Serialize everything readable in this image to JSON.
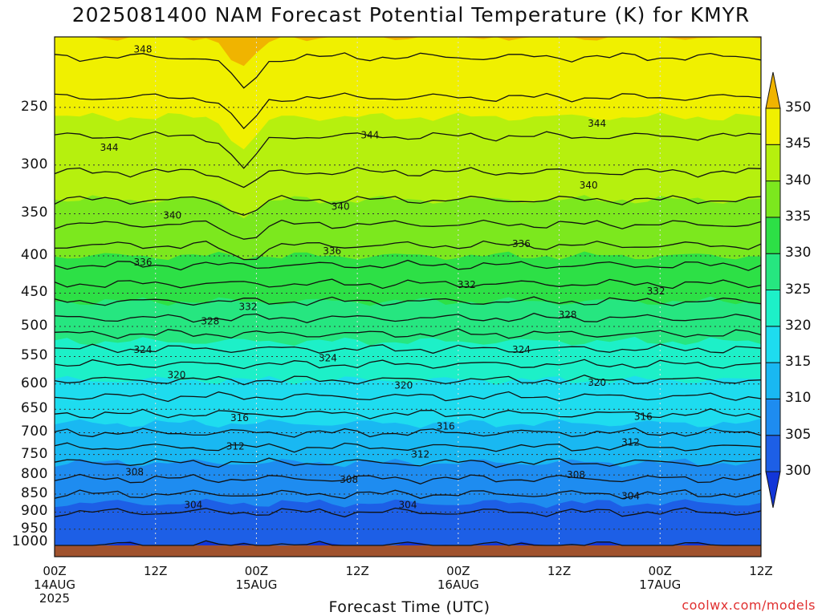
{
  "title": "2025081400 NAM Forecast Potential Temperature (K) for KMYR",
  "credit": "coolwx.com/models",
  "chart_data": {
    "type": "heatmap",
    "title": "2025081400 NAM Forecast Potential Temperature (K) for KMYR",
    "xlabel": "Forecast Time (UTC)",
    "ylabel": "",
    "y_scale": "log",
    "ylim": [
      1000,
      200
    ],
    "y_ticks": [
      250,
      300,
      350,
      400,
      450,
      500,
      550,
      600,
      650,
      700,
      750,
      800,
      850,
      900,
      950,
      1000
    ],
    "x_ticks": [
      {
        "hour": 0,
        "lines": [
          "00Z",
          "14AUG",
          "2025"
        ]
      },
      {
        "hour": 12,
        "lines": [
          "12Z"
        ]
      },
      {
        "hour": 24,
        "lines": [
          "00Z",
          "15AUG"
        ]
      },
      {
        "hour": 36,
        "lines": [
          "12Z"
        ]
      },
      {
        "hour": 48,
        "lines": [
          "00Z",
          "16AUG"
        ]
      },
      {
        "hour": 60,
        "lines": [
          "12Z"
        ]
      },
      {
        "hour": 72,
        "lines": [
          "00Z",
          "17AUG"
        ]
      },
      {
        "hour": 84,
        "lines": [
          "12Z"
        ]
      }
    ],
    "xlim_hours": [
      0,
      84
    ],
    "grid": true,
    "colorbar": {
      "levels": [
        300,
        305,
        310,
        315,
        320,
        325,
        330,
        335,
        340,
        345,
        350
      ],
      "colors": [
        "#1236d8",
        "#1d5fe6",
        "#1e8cf0",
        "#19b8f2",
        "#1edcef",
        "#1df0c8",
        "#26e680",
        "#2de046",
        "#7ce81e",
        "#b6f00e",
        "#f0f000",
        "#f0b400"
      ]
    },
    "profile": [
      {
        "p": 1000,
        "theta": 302
      },
      {
        "p": 950,
        "theta": 302.5
      },
      {
        "p": 900,
        "theta": 304
      },
      {
        "p": 850,
        "theta": 306
      },
      {
        "p": 800,
        "theta": 308.5
      },
      {
        "p": 750,
        "theta": 311
      },
      {
        "p": 700,
        "theta": 314
      },
      {
        "p": 650,
        "theta": 316.5
      },
      {
        "p": 600,
        "theta": 319.5
      },
      {
        "p": 550,
        "theta": 323
      },
      {
        "p": 500,
        "theta": 327
      },
      {
        "p": 450,
        "theta": 331
      },
      {
        "p": 400,
        "theta": 335
      },
      {
        "p": 350,
        "theta": 339
      },
      {
        "p": 300,
        "theta": 342.5
      },
      {
        "p": 250,
        "theta": 345.5
      },
      {
        "p": 200,
        "theta": 349
      }
    ],
    "contour_levels": [
      302,
      304,
      306,
      308,
      310,
      312,
      314,
      316,
      318,
      320,
      322,
      324,
      326,
      328,
      330,
      332,
      334,
      336,
      338,
      340,
      342,
      344,
      346,
      348
    ],
    "contour_labels": [
      {
        "text": "348",
        "hour": 10.5,
        "p": 208
      },
      {
        "text": "344",
        "hour": 6.5,
        "p": 284
      },
      {
        "text": "344",
        "hour": 37.5,
        "p": 273
      },
      {
        "text": "344",
        "hour": 64.5,
        "p": 263
      },
      {
        "text": "340",
        "hour": 14,
        "p": 352
      },
      {
        "text": "340",
        "hour": 34,
        "p": 342
      },
      {
        "text": "340",
        "hour": 63.5,
        "p": 320
      },
      {
        "text": "336",
        "hour": 10.5,
        "p": 408
      },
      {
        "text": "336",
        "hour": 33,
        "p": 394
      },
      {
        "text": "336",
        "hour": 55.5,
        "p": 385
      },
      {
        "text": "332",
        "hour": 23,
        "p": 470
      },
      {
        "text": "332",
        "hour": 49,
        "p": 438
      },
      {
        "text": "332",
        "hour": 71.5,
        "p": 447
      },
      {
        "text": "328",
        "hour": 18.5,
        "p": 492
      },
      {
        "text": "328",
        "hour": 61,
        "p": 482
      },
      {
        "text": "324",
        "hour": 10.5,
        "p": 538
      },
      {
        "text": "324",
        "hour": 32.5,
        "p": 553
      },
      {
        "text": "324",
        "hour": 55.5,
        "p": 538
      },
      {
        "text": "320",
        "hour": 14.5,
        "p": 583
      },
      {
        "text": "320",
        "hour": 41.5,
        "p": 603
      },
      {
        "text": "320",
        "hour": 64.5,
        "p": 597
      },
      {
        "text": "316",
        "hour": 22,
        "p": 668
      },
      {
        "text": "316",
        "hour": 46.5,
        "p": 686
      },
      {
        "text": "316",
        "hour": 70,
        "p": 665
      },
      {
        "text": "312",
        "hour": 21.5,
        "p": 731
      },
      {
        "text": "312",
        "hour": 43.5,
        "p": 750
      },
      {
        "text": "312",
        "hour": 68.5,
        "p": 722
      },
      {
        "text": "308",
        "hour": 9.5,
        "p": 793
      },
      {
        "text": "308",
        "hour": 35,
        "p": 812
      },
      {
        "text": "308",
        "hour": 62,
        "p": 800
      },
      {
        "text": "304",
        "hour": 16.5,
        "p": 880
      },
      {
        "text": "304",
        "hour": 42,
        "p": 880
      },
      {
        "text": "304",
        "hour": 68.5,
        "p": 855
      }
    ]
  }
}
